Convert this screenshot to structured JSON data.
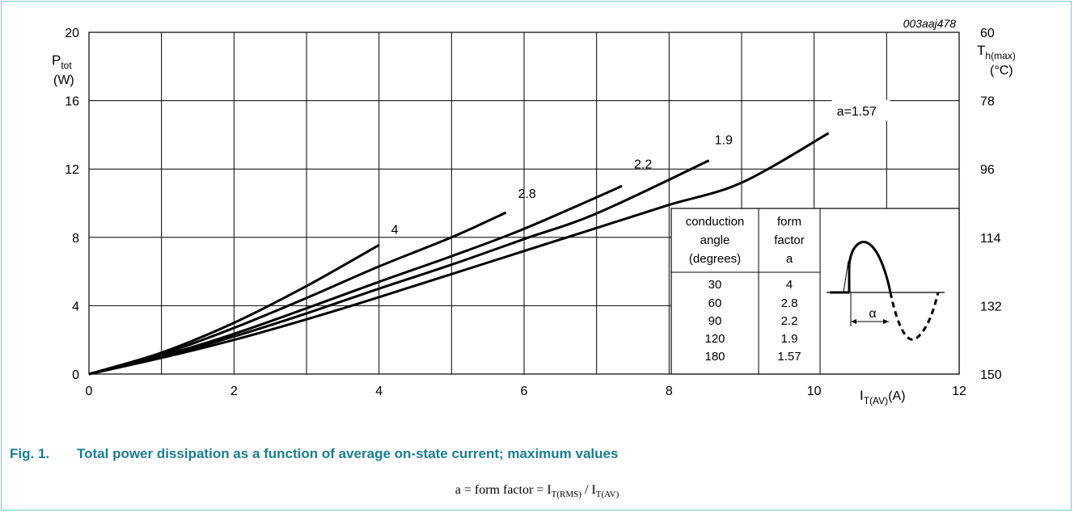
{
  "chart_data": {
    "type": "line",
    "code": "003aaj478",
    "xlabel": {
      "main": "I",
      "sub": "T(AV)",
      "unit": "(A)"
    },
    "ylabel": {
      "main": "P",
      "sub": "tot",
      "unit": "(W)"
    },
    "y2label": {
      "main": "T",
      "sub": "h(max)",
      "unit": "(°C)"
    },
    "xlim": [
      0,
      12
    ],
    "ylim": [
      0,
      20
    ],
    "x_ticks": [
      "0",
      "2",
      "4",
      "6",
      "8",
      "10",
      "12"
    ],
    "y_ticks": [
      "0",
      "4",
      "8",
      "12",
      "16",
      "20"
    ],
    "y2_ticks": [
      "150",
      "132",
      "114",
      "96",
      "78",
      "60"
    ],
    "grid": true,
    "series": [
      {
        "name": "4",
        "points": [
          [
            0,
            0
          ],
          [
            1,
            1.25
          ],
          [
            2,
            3.0
          ],
          [
            3,
            5.15
          ],
          [
            4,
            7.55
          ]
        ]
      },
      {
        "name": "2.8",
        "points": [
          [
            0,
            0
          ],
          [
            1,
            1.15
          ],
          [
            2,
            2.7
          ],
          [
            3,
            4.45
          ],
          [
            4,
            6.3
          ],
          [
            5,
            8.0
          ],
          [
            5.75,
            9.45
          ]
        ]
      },
      {
        "name": "2.2",
        "points": [
          [
            0,
            0
          ],
          [
            1,
            1.05
          ],
          [
            2,
            2.35
          ],
          [
            3,
            3.85
          ],
          [
            4,
            5.4
          ],
          [
            5,
            6.9
          ],
          [
            6,
            8.5
          ],
          [
            7.35,
            11.0
          ]
        ]
      },
      {
        "name": "1.9",
        "points": [
          [
            0,
            0
          ],
          [
            1,
            1.0
          ],
          [
            2,
            2.2
          ],
          [
            3,
            3.55
          ],
          [
            4,
            5.0
          ],
          [
            5,
            6.4
          ],
          [
            6,
            7.9
          ],
          [
            7,
            9.4
          ],
          [
            8.55,
            12.5
          ]
        ]
      },
      {
        "name": "a=1.57",
        "points": [
          [
            0,
            0
          ],
          [
            1,
            0.95
          ],
          [
            2,
            2.0
          ],
          [
            3,
            3.2
          ],
          [
            4,
            4.5
          ],
          [
            5,
            5.85
          ],
          [
            6,
            7.2
          ],
          [
            7,
            8.55
          ],
          [
            8,
            9.9
          ],
          [
            9,
            11.2
          ],
          [
            10.2,
            14.1
          ]
        ]
      }
    ],
    "inset_table": {
      "col1_header": [
        "conduction",
        "angle",
        "(degrees)"
      ],
      "col2_header": [
        "form",
        "factor",
        "a"
      ],
      "angles": [
        "30",
        "60",
        "90",
        "120",
        "180"
      ],
      "factors": [
        "4",
        "2.8",
        "2.2",
        "1.9",
        "1.57"
      ],
      "waveform_label": "α"
    }
  },
  "caption": {
    "number": "Fig. 1.",
    "text": "Total power dissipation as a function of average on-state current; maximum values"
  },
  "formula": {
    "lhs": "a = form factor = I",
    "sub1": "T(RMS)",
    "mid": " / I",
    "sub2": "T(AV)"
  }
}
